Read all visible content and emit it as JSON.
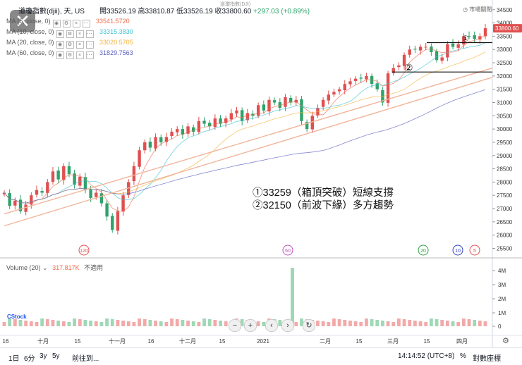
{
  "header": {
    "symbol_name": "道瓊指數(djii), 天, US",
    "open_label": "開",
    "open": "33526.19",
    "high_label": "高",
    "high": "33810.87",
    "low_label": "低",
    "low": "33526.19",
    "close_label": "收",
    "close": "33800.60",
    "change": "+297.03 (+0.89%)",
    "overlay_text": "道瓊指數(DJI)",
    "market_status": "市場關閉"
  },
  "legend": [
    {
      "label": "MA (5, close, 0)",
      "value": "33541.5720",
      "color": "#ee6a4e"
    },
    {
      "label": "MA (10, close, 0)",
      "value": "33315.3830",
      "color": "#3ec1d3"
    },
    {
      "label": "MA (20, close, 0)",
      "value": "33020.5705",
      "color": "#f3b33b"
    },
    {
      "label": "MA (60, close, 0)",
      "value": "31829.7563",
      "color": "#5b5fbf"
    }
  ],
  "volume_legend": {
    "label": "Volume (20)",
    "value": "317.817K",
    "note": "不適用"
  },
  "annotations": {
    "line1": "①33259（箱頂突破）短線支撐",
    "line2": "②32150（前波下緣）多方趨勢",
    "marker1": "①",
    "marker2": "②"
  },
  "price_tag": "33800.60",
  "chart_data": {
    "type": "candlestick",
    "title": "道瓊指數(djii), 天, US",
    "y_ticks": [
      34500,
      34000,
      33500,
      33000,
      32500,
      32000,
      31500,
      31000,
      30500,
      30000,
      29500,
      29000,
      28500,
      28000,
      27500,
      27000,
      26500,
      26000,
      25500
    ],
    "ylim": [
      25300,
      34600
    ],
    "volume_ticks": [
      "4M",
      "3M",
      "2M",
      "1M",
      "0"
    ],
    "x_labels": [
      "16",
      "十月",
      "15",
      "十一月",
      "16",
      "十二月",
      "15",
      "2021",
      "二月",
      "15",
      "三月",
      "15",
      "四月"
    ],
    "ma_badges": [
      {
        "text": "120",
        "color": "#e05050"
      },
      {
        "text": "60",
        "color": "#c050c0"
      },
      {
        "text": "20",
        "color": "#2aa040"
      },
      {
        "text": "10",
        "color": "#3040c0"
      },
      {
        "text": "5",
        "color": "#e05050"
      }
    ],
    "support_levels": [
      33259,
      32150
    ],
    "trendlines": [
      {
        "name": "long-trend",
        "from": 26350,
        "to": 31950
      },
      {
        "name": "upper-trend",
        "from": 26800,
        "to": 32300
      }
    ],
    "close_path": [
      27600,
      27100,
      27300,
      26900,
      27150,
      27500,
      27700,
      27600,
      28000,
      28400,
      28100,
      28600,
      28300,
      27900,
      28200,
      27700,
      27400,
      27600,
      27200,
      26700,
      26200,
      26900,
      27500,
      28000,
      28600,
      29200,
      29500,
      29300,
      29700,
      29500,
      29700,
      29900,
      30000,
      29800,
      30100,
      29900,
      30300,
      30200,
      30100,
      30400,
      30200,
      30400,
      30600,
      30700,
      30300,
      30600,
      30500,
      30900,
      30700,
      31100,
      31000,
      30800,
      31200,
      31000,
      31100,
      30300,
      30000,
      30500,
      30800,
      31100,
      31300,
      31400,
      31500,
      31700,
      31800,
      31900,
      31900,
      32000,
      31700,
      31500,
      31000,
      32100,
      32300,
      32400,
      32800,
      33000,
      33000,
      33100,
      33100,
      32900,
      32600,
      32700,
      33200,
      33100,
      33200,
      33500,
      33500,
      33400,
      33500,
      33800
    ],
    "volume_spike": "4.2M",
    "current_price": 33800.6
  },
  "bottom_bar": {
    "ranges": [
      "1日",
      "6分",
      "3y",
      "5y"
    ],
    "goto": "前往到...",
    "time": "14:14:52 (UTC+8)",
    "percent": "%",
    "log": "對數座標"
  },
  "controls": {
    "minus": "−",
    "plus": "+",
    "left": "‹",
    "right": "›",
    "reset": "↻"
  },
  "colors": {
    "up": "#e05050",
    "down": "#2ea36a",
    "accent": "#f1b59b"
  }
}
